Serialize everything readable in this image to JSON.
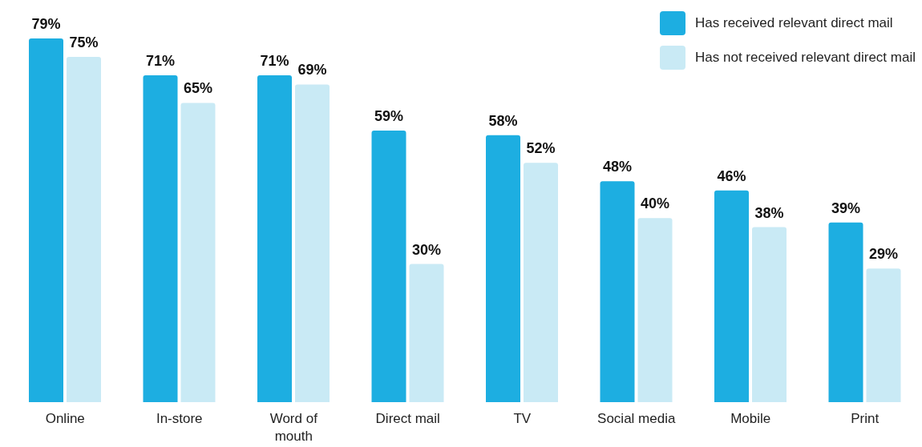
{
  "chart_data": {
    "type": "bar",
    "categories": [
      "Online",
      "In-store",
      "Word of mouth",
      "Direct mail",
      "TV",
      "Social media",
      "Mobile",
      "Print"
    ],
    "series": [
      {
        "name": "Has received relevant direct mail",
        "color": "#1daee1",
        "values": [
          79,
          71,
          71,
          59,
          58,
          48,
          46,
          39
        ],
        "value_labels": [
          "79%",
          "71%",
          "71%",
          "59%",
          "58%",
          "48%",
          "46%",
          "39%"
        ]
      },
      {
        "name": "Has not received relevant direct mail",
        "color": "#c9eaf5",
        "values": [
          75,
          65,
          69,
          30,
          52,
          40,
          38,
          29
        ],
        "value_labels": [
          "75%",
          "65%",
          "69%",
          "30%",
          "52%",
          "40%",
          "38%",
          "29%"
        ]
      }
    ],
    "legend": "top right",
    "grid": false
  }
}
